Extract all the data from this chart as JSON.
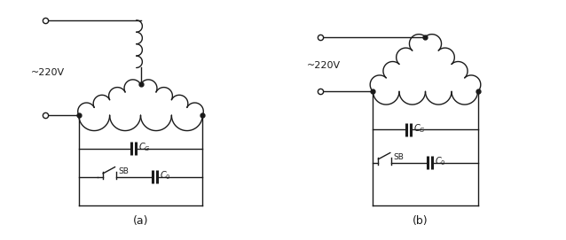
{
  "bg_color": "#ffffff",
  "line_color": "#1a1a1a",
  "label_a": "(a)",
  "label_b": "(b)",
  "voltage_label": "~220V"
}
